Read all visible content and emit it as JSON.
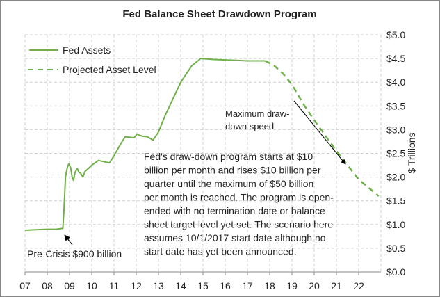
{
  "chart_data": {
    "type": "line",
    "title": "Fed Balance Sheet Drawdown Program",
    "xlabel": "",
    "ylabel": "$ Trillions",
    "xlim": [
      2007,
      2023
    ],
    "ylim": [
      0,
      5
    ],
    "grid": true,
    "legend_position": "top-left",
    "x_tick_labels": [
      "07",
      "08",
      "09",
      "10",
      "11",
      "12",
      "13",
      "14",
      "15",
      "16",
      "17",
      "18",
      "19",
      "20",
      "21",
      "22"
    ],
    "y_tick_labels": [
      "$0.0",
      "$0.5",
      "$1.0",
      "$1.5",
      "$2.0",
      "$2.5",
      "$3.0",
      "$3.5",
      "$4.0",
      "$4.5",
      "$5.0"
    ],
    "series": [
      {
        "name": "Fed Assets",
        "style": "solid",
        "color": "#70b04a",
        "x": [
          2007.0,
          2007.5,
          2008.0,
          2008.4,
          2008.7,
          2008.75,
          2008.82,
          2008.9,
          2008.97,
          2009.05,
          2009.12,
          2009.18,
          2009.25,
          2009.35,
          2009.42,
          2009.5,
          2009.6,
          2009.7,
          2009.85,
          2010.0,
          2010.3,
          2010.6,
          2010.8,
          2011.0,
          2011.3,
          2011.5,
          2011.9,
          2012.05,
          2012.15,
          2012.3,
          2012.5,
          2012.75,
          2013.0,
          2013.3,
          2013.7,
          2014.0,
          2014.5,
          2014.9,
          2015.5,
          2016.0,
          2016.5,
          2017.0,
          2017.5,
          2017.8
        ],
        "values": [
          0.88,
          0.89,
          0.9,
          0.9,
          0.92,
          1.3,
          2.0,
          2.2,
          2.28,
          2.2,
          2.0,
          1.93,
          2.1,
          2.18,
          2.1,
          2.08,
          2.0,
          2.12,
          2.18,
          2.25,
          2.35,
          2.32,
          2.3,
          2.45,
          2.7,
          2.85,
          2.83,
          2.91,
          2.88,
          2.86,
          2.85,
          2.78,
          2.95,
          3.3,
          3.7,
          4.0,
          4.35,
          4.5,
          4.48,
          4.47,
          4.46,
          4.45,
          4.45,
          4.45
        ]
      },
      {
        "name": "Projected Asset Level",
        "style": "dashed",
        "color": "#70b04a",
        "x": [
          2017.8,
          2018.2,
          2018.6,
          2019.0,
          2019.5,
          2020.0,
          2021.0,
          2022.0,
          2022.9
        ],
        "values": [
          4.45,
          4.35,
          4.18,
          3.95,
          3.55,
          3.2,
          2.55,
          1.95,
          1.6
        ]
      }
    ],
    "annotations": {
      "max_speed": [
        "Maximum draw-",
        "down speed"
      ],
      "program": [
        "Fed's draw-down program starts at $10",
        "billion per month and rises $10 billion per",
        "quarter until the maximum of $50 billion",
        "per month is reached.  The program is open-",
        "ended with no termination date or balance",
        "sheet target level yet set.  The scenario here",
        "assumes 10/1/2017 start date although no",
        "start date has yet been announced."
      ],
      "pre_crisis": "Pre-Crisis $900 billion"
    }
  }
}
